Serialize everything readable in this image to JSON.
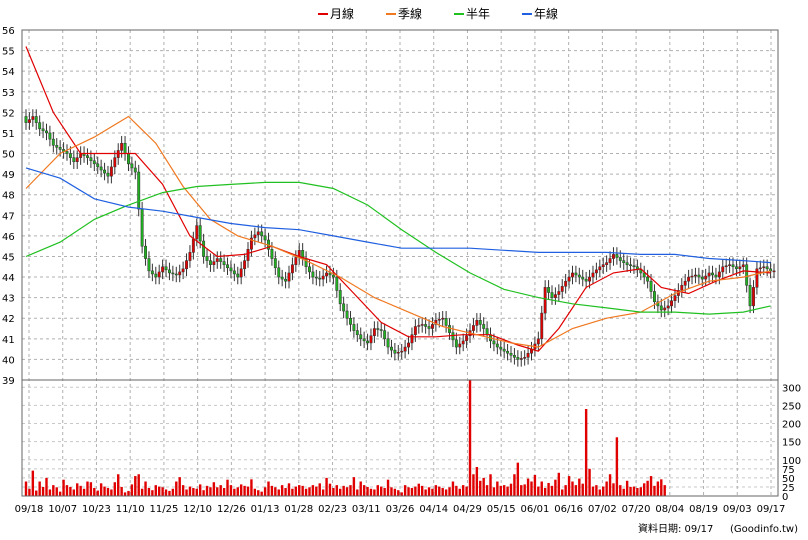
{
  "chart_data": {
    "type": "candlestick",
    "legend": [
      {
        "label": "月線",
        "color": "#e00000"
      },
      {
        "label": "季線",
        "color": "#f07820"
      },
      {
        "label": "半年",
        "color": "#20c020"
      },
      {
        "label": "年線",
        "color": "#2060e0"
      }
    ],
    "price_axis": {
      "min": 39,
      "max": 56,
      "ticks": [
        39,
        40,
        41,
        42,
        43,
        44,
        45,
        46,
        47,
        48,
        49,
        50,
        51,
        52,
        53,
        54,
        55,
        56
      ]
    },
    "volume_axis": {
      "min": 0,
      "max": 320,
      "ticks": [
        0,
        25,
        50,
        75,
        100,
        150,
        200,
        250,
        300
      ]
    },
    "x_labels": [
      "09/18",
      "10/07",
      "10/23",
      "11/10",
      "11/25",
      "12/10",
      "12/26",
      "01/13",
      "01/28",
      "02/23",
      "03/11",
      "03/26",
      "04/14",
      "04/29",
      "05/15",
      "06/01",
      "06/16",
      "07/02",
      "07/20",
      "08/04",
      "08/19",
      "09/03",
      "09/17"
    ],
    "close_path": [
      [
        0,
        51.5
      ],
      [
        2,
        51.8
      ],
      [
        4,
        51.2
      ],
      [
        6,
        51.0
      ],
      [
        8,
        50.4
      ],
      [
        10,
        50.2
      ],
      [
        12,
        50.0
      ],
      [
        14,
        49.6
      ],
      [
        16,
        50.0
      ],
      [
        18,
        49.8
      ],
      [
        20,
        49.5
      ],
      [
        22,
        49.2
      ],
      [
        24,
        48.9
      ],
      [
        26,
        49.8
      ],
      [
        28,
        50.5
      ],
      [
        30,
        49.5
      ],
      [
        32,
        49.1
      ],
      [
        34,
        45.5
      ],
      [
        36,
        44.3
      ],
      [
        38,
        44.0
      ],
      [
        40,
        44.5
      ],
      [
        42,
        44.2
      ],
      [
        44,
        44.1
      ],
      [
        46,
        44.4
      ],
      [
        48,
        45.2
      ],
      [
        50,
        46.5
      ],
      [
        52,
        45.0
      ],
      [
        54,
        44.6
      ],
      [
        56,
        44.9
      ],
      [
        58,
        44.6
      ],
      [
        60,
        44.3
      ],
      [
        62,
        44.0
      ],
      [
        64,
        44.8
      ],
      [
        66,
        45.9
      ],
      [
        68,
        46.2
      ],
      [
        70,
        45.8
      ],
      [
        72,
        44.9
      ],
      [
        74,
        44.0
      ],
      [
        76,
        43.8
      ],
      [
        78,
        44.6
      ],
      [
        80,
        45.3
      ],
      [
        82,
        44.5
      ],
      [
        84,
        44.0
      ],
      [
        86,
        43.9
      ],
      [
        88,
        44.2
      ],
      [
        90,
        44.0
      ],
      [
        92,
        42.7
      ],
      [
        94,
        42.0
      ],
      [
        96,
        41.4
      ],
      [
        98,
        41.0
      ],
      [
        100,
        40.8
      ],
      [
        102,
        41.5
      ],
      [
        104,
        41.4
      ],
      [
        106,
        40.6
      ],
      [
        108,
        40.3
      ],
      [
        110,
        40.4
      ],
      [
        112,
        40.8
      ],
      [
        114,
        41.6
      ],
      [
        116,
        41.7
      ],
      [
        118,
        41.5
      ],
      [
        120,
        41.9
      ],
      [
        122,
        42.0
      ],
      [
        124,
        41.3
      ],
      [
        126,
        40.6
      ],
      [
        128,
        40.9
      ],
      [
        130,
        41.4
      ],
      [
        132,
        41.9
      ],
      [
        134,
        41.5
      ],
      [
        136,
        40.9
      ],
      [
        138,
        40.6
      ],
      [
        140,
        40.4
      ],
      [
        142,
        40.2
      ],
      [
        144,
        40.0
      ],
      [
        146,
        40.1
      ],
      [
        148,
        40.5
      ],
      [
        150,
        41.0
      ],
      [
        152,
        43.5
      ],
      [
        154,
        43.0
      ],
      [
        156,
        43.3
      ],
      [
        158,
        43.8
      ],
      [
        160,
        44.2
      ],
      [
        162,
        44.0
      ],
      [
        164,
        43.8
      ],
      [
        166,
        44.2
      ],
      [
        168,
        44.5
      ],
      [
        170,
        44.7
      ],
      [
        172,
        45.1
      ],
      [
        174,
        44.8
      ],
      [
        176,
        44.6
      ],
      [
        178,
        44.5
      ],
      [
        180,
        44.2
      ],
      [
        182,
        43.8
      ],
      [
        184,
        42.8
      ],
      [
        186,
        42.4
      ],
      [
        188,
        42.6
      ],
      [
        190,
        43.1
      ],
      [
        192,
        43.6
      ],
      [
        194,
        44.0
      ],
      [
        196,
        44.1
      ],
      [
        198,
        43.9
      ],
      [
        200,
        44.2
      ],
      [
        202,
        44.0
      ],
      [
        204,
        44.5
      ],
      [
        206,
        44.6
      ],
      [
        208,
        44.4
      ],
      [
        210,
        44.6
      ],
      [
        212,
        42.6
      ],
      [
        214,
        44.4
      ],
      [
        216,
        44.5
      ],
      [
        218,
        44.3
      ]
    ],
    "volume_values": [
      40,
      20,
      70,
      15,
      40,
      25,
      50,
      18,
      30,
      24,
      12,
      45,
      30,
      25,
      18,
      35,
      28,
      20,
      40,
      38,
      22,
      15,
      35,
      26,
      22,
      18,
      38,
      60,
      25,
      10,
      14,
      32,
      55,
      60,
      20,
      40,
      22,
      16,
      30,
      26,
      24,
      18,
      14,
      20,
      40,
      52,
      30,
      18,
      26,
      22,
      20,
      32,
      16,
      28,
      24,
      38,
      24,
      30,
      22,
      45,
      30,
      20,
      24,
      32,
      28,
      26,
      46,
      20,
      16,
      12,
      24,
      40,
      28,
      24,
      18,
      30,
      22,
      35,
      20,
      26,
      30,
      28,
      20,
      24,
      30,
      26,
      35,
      18,
      50,
      34,
      22,
      30,
      20,
      28,
      24,
      30,
      52,
      18,
      40,
      30,
      25,
      20,
      18,
      30,
      26,
      22,
      45,
      24,
      20,
      16,
      10,
      30,
      24,
      22,
      26,
      34,
      28,
      18,
      24,
      20,
      30,
      26,
      22,
      18,
      24,
      40,
      28,
      20,
      30,
      26,
      345,
      60,
      80,
      42,
      50,
      30,
      60,
      24,
      40,
      28,
      30,
      26,
      34,
      60,
      92,
      30,
      32,
      48,
      40,
      58,
      26,
      40,
      22,
      36,
      28,
      45,
      64,
      18,
      30,
      55,
      40,
      30,
      48,
      34,
      240,
      75,
      26,
      30,
      18,
      26,
      40,
      60,
      35,
      162,
      30,
      20,
      42,
      25,
      26,
      22,
      24,
      35,
      42,
      55,
      28,
      40,
      46,
      30
    ],
    "series": [
      {
        "name": "月線",
        "values": [
          [
            0,
            55.2
          ],
          [
            8,
            52.0
          ],
          [
            16,
            50.0
          ],
          [
            24,
            50.0
          ],
          [
            32,
            50.0
          ],
          [
            40,
            48.5
          ],
          [
            48,
            46.0
          ],
          [
            56,
            45.0
          ],
          [
            64,
            45.1
          ],
          [
            72,
            45.5
          ],
          [
            80,
            45.0
          ],
          [
            88,
            44.6
          ],
          [
            96,
            43.2
          ],
          [
            104,
            41.8
          ],
          [
            112,
            41.1
          ],
          [
            120,
            41.1
          ],
          [
            128,
            41.2
          ],
          [
            136,
            41.2
          ],
          [
            144,
            40.7
          ],
          [
            150,
            40.4
          ],
          [
            156,
            41.5
          ],
          [
            164,
            43.5
          ],
          [
            172,
            44.2
          ],
          [
            180,
            44.4
          ],
          [
            186,
            43.5
          ],
          [
            194,
            43.2
          ],
          [
            202,
            43.8
          ],
          [
            210,
            44.3
          ],
          [
            218,
            44.2
          ]
        ]
      },
      {
        "name": "季線",
        "values": [
          [
            0,
            48.3
          ],
          [
            10,
            50.0
          ],
          [
            20,
            50.8
          ],
          [
            30,
            51.8
          ],
          [
            38,
            50.5
          ],
          [
            46,
            48.4
          ],
          [
            54,
            46.8
          ],
          [
            62,
            46.0
          ],
          [
            72,
            45.5
          ],
          [
            82,
            44.8
          ],
          [
            92,
            44.0
          ],
          [
            102,
            43.0
          ],
          [
            112,
            42.3
          ],
          [
            122,
            41.6
          ],
          [
            132,
            41.2
          ],
          [
            142,
            40.8
          ],
          [
            150,
            40.6
          ],
          [
            160,
            41.5
          ],
          [
            170,
            42.0
          ],
          [
            180,
            42.3
          ],
          [
            190,
            43.2
          ],
          [
            200,
            43.8
          ],
          [
            210,
            44.0
          ],
          [
            218,
            44.3
          ]
        ]
      },
      {
        "name": "半年",
        "values": [
          [
            0,
            45.0
          ],
          [
            10,
            45.7
          ],
          [
            20,
            46.8
          ],
          [
            30,
            47.5
          ],
          [
            40,
            48.1
          ],
          [
            50,
            48.4
          ],
          [
            60,
            48.5
          ],
          [
            70,
            48.6
          ],
          [
            80,
            48.6
          ],
          [
            90,
            48.3
          ],
          [
            100,
            47.5
          ],
          [
            110,
            46.3
          ],
          [
            120,
            45.2
          ],
          [
            130,
            44.2
          ],
          [
            140,
            43.4
          ],
          [
            150,
            43.0
          ],
          [
            160,
            42.7
          ],
          [
            170,
            42.5
          ],
          [
            180,
            42.3
          ],
          [
            190,
            42.3
          ],
          [
            200,
            42.2
          ],
          [
            210,
            42.3
          ],
          [
            218,
            42.6
          ]
        ]
      },
      {
        "name": "年線",
        "values": [
          [
            0,
            49.3
          ],
          [
            10,
            48.8
          ],
          [
            20,
            47.8
          ],
          [
            30,
            47.4
          ],
          [
            40,
            47.2
          ],
          [
            50,
            46.9
          ],
          [
            60,
            46.6
          ],
          [
            70,
            46.4
          ],
          [
            80,
            46.3
          ],
          [
            90,
            46.0
          ],
          [
            100,
            45.7
          ],
          [
            110,
            45.4
          ],
          [
            120,
            45.4
          ],
          [
            130,
            45.4
          ],
          [
            140,
            45.3
          ],
          [
            150,
            45.2
          ],
          [
            160,
            45.2
          ],
          [
            170,
            45.2
          ],
          [
            180,
            45.1
          ],
          [
            190,
            45.1
          ],
          [
            200,
            44.9
          ],
          [
            210,
            44.8
          ],
          [
            218,
            44.7
          ]
        ]
      }
    ]
  },
  "footer": {
    "date_text": "資料日期: 09/17",
    "source_text": "(Goodinfo.tw)"
  }
}
